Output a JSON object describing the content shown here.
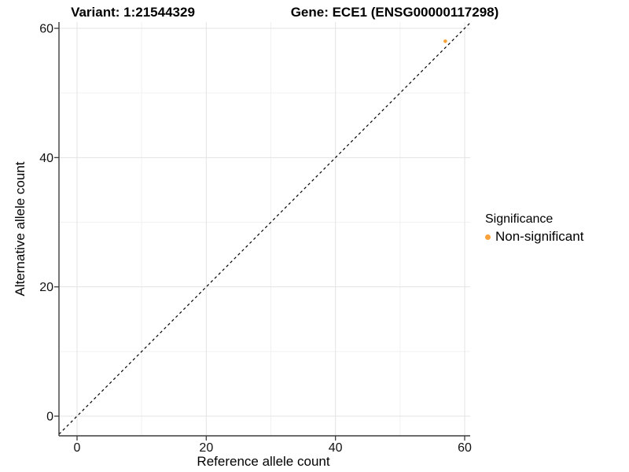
{
  "titles": {
    "variant": "Variant: 1:21544329",
    "gene": "Gene: ECE1 (ENSG00000117298)"
  },
  "chart_data": {
    "type": "scatter",
    "xlabel": "Reference allele count",
    "ylabel": "Alternative allele count",
    "xlim": [
      -3,
      61
    ],
    "ylim": [
      -3,
      61
    ],
    "xticks": [
      0,
      20,
      40,
      60
    ],
    "yticks": [
      0,
      20,
      40,
      60
    ],
    "minor_xticks": [
      10,
      30,
      50
    ],
    "minor_yticks": [
      10,
      30,
      50
    ],
    "grid": true,
    "identity_line": {
      "slope": 1,
      "intercept": 0,
      "style": "dashed",
      "color": "#000000"
    },
    "series": [
      {
        "name": "Non-significant",
        "color": "#F9A23B",
        "points": [
          {
            "x": 57,
            "y": 58
          }
        ]
      }
    ],
    "legend": {
      "title": "Significance",
      "position": "right",
      "entries": [
        {
          "label": "Non-significant",
          "color": "#F9A23B"
        }
      ]
    }
  },
  "style_colors": {
    "grid_major": "#e3e3e3",
    "grid_minor": "#f1f1f1",
    "axis_line": "#3c3c3c",
    "tick_text": "#111111"
  }
}
